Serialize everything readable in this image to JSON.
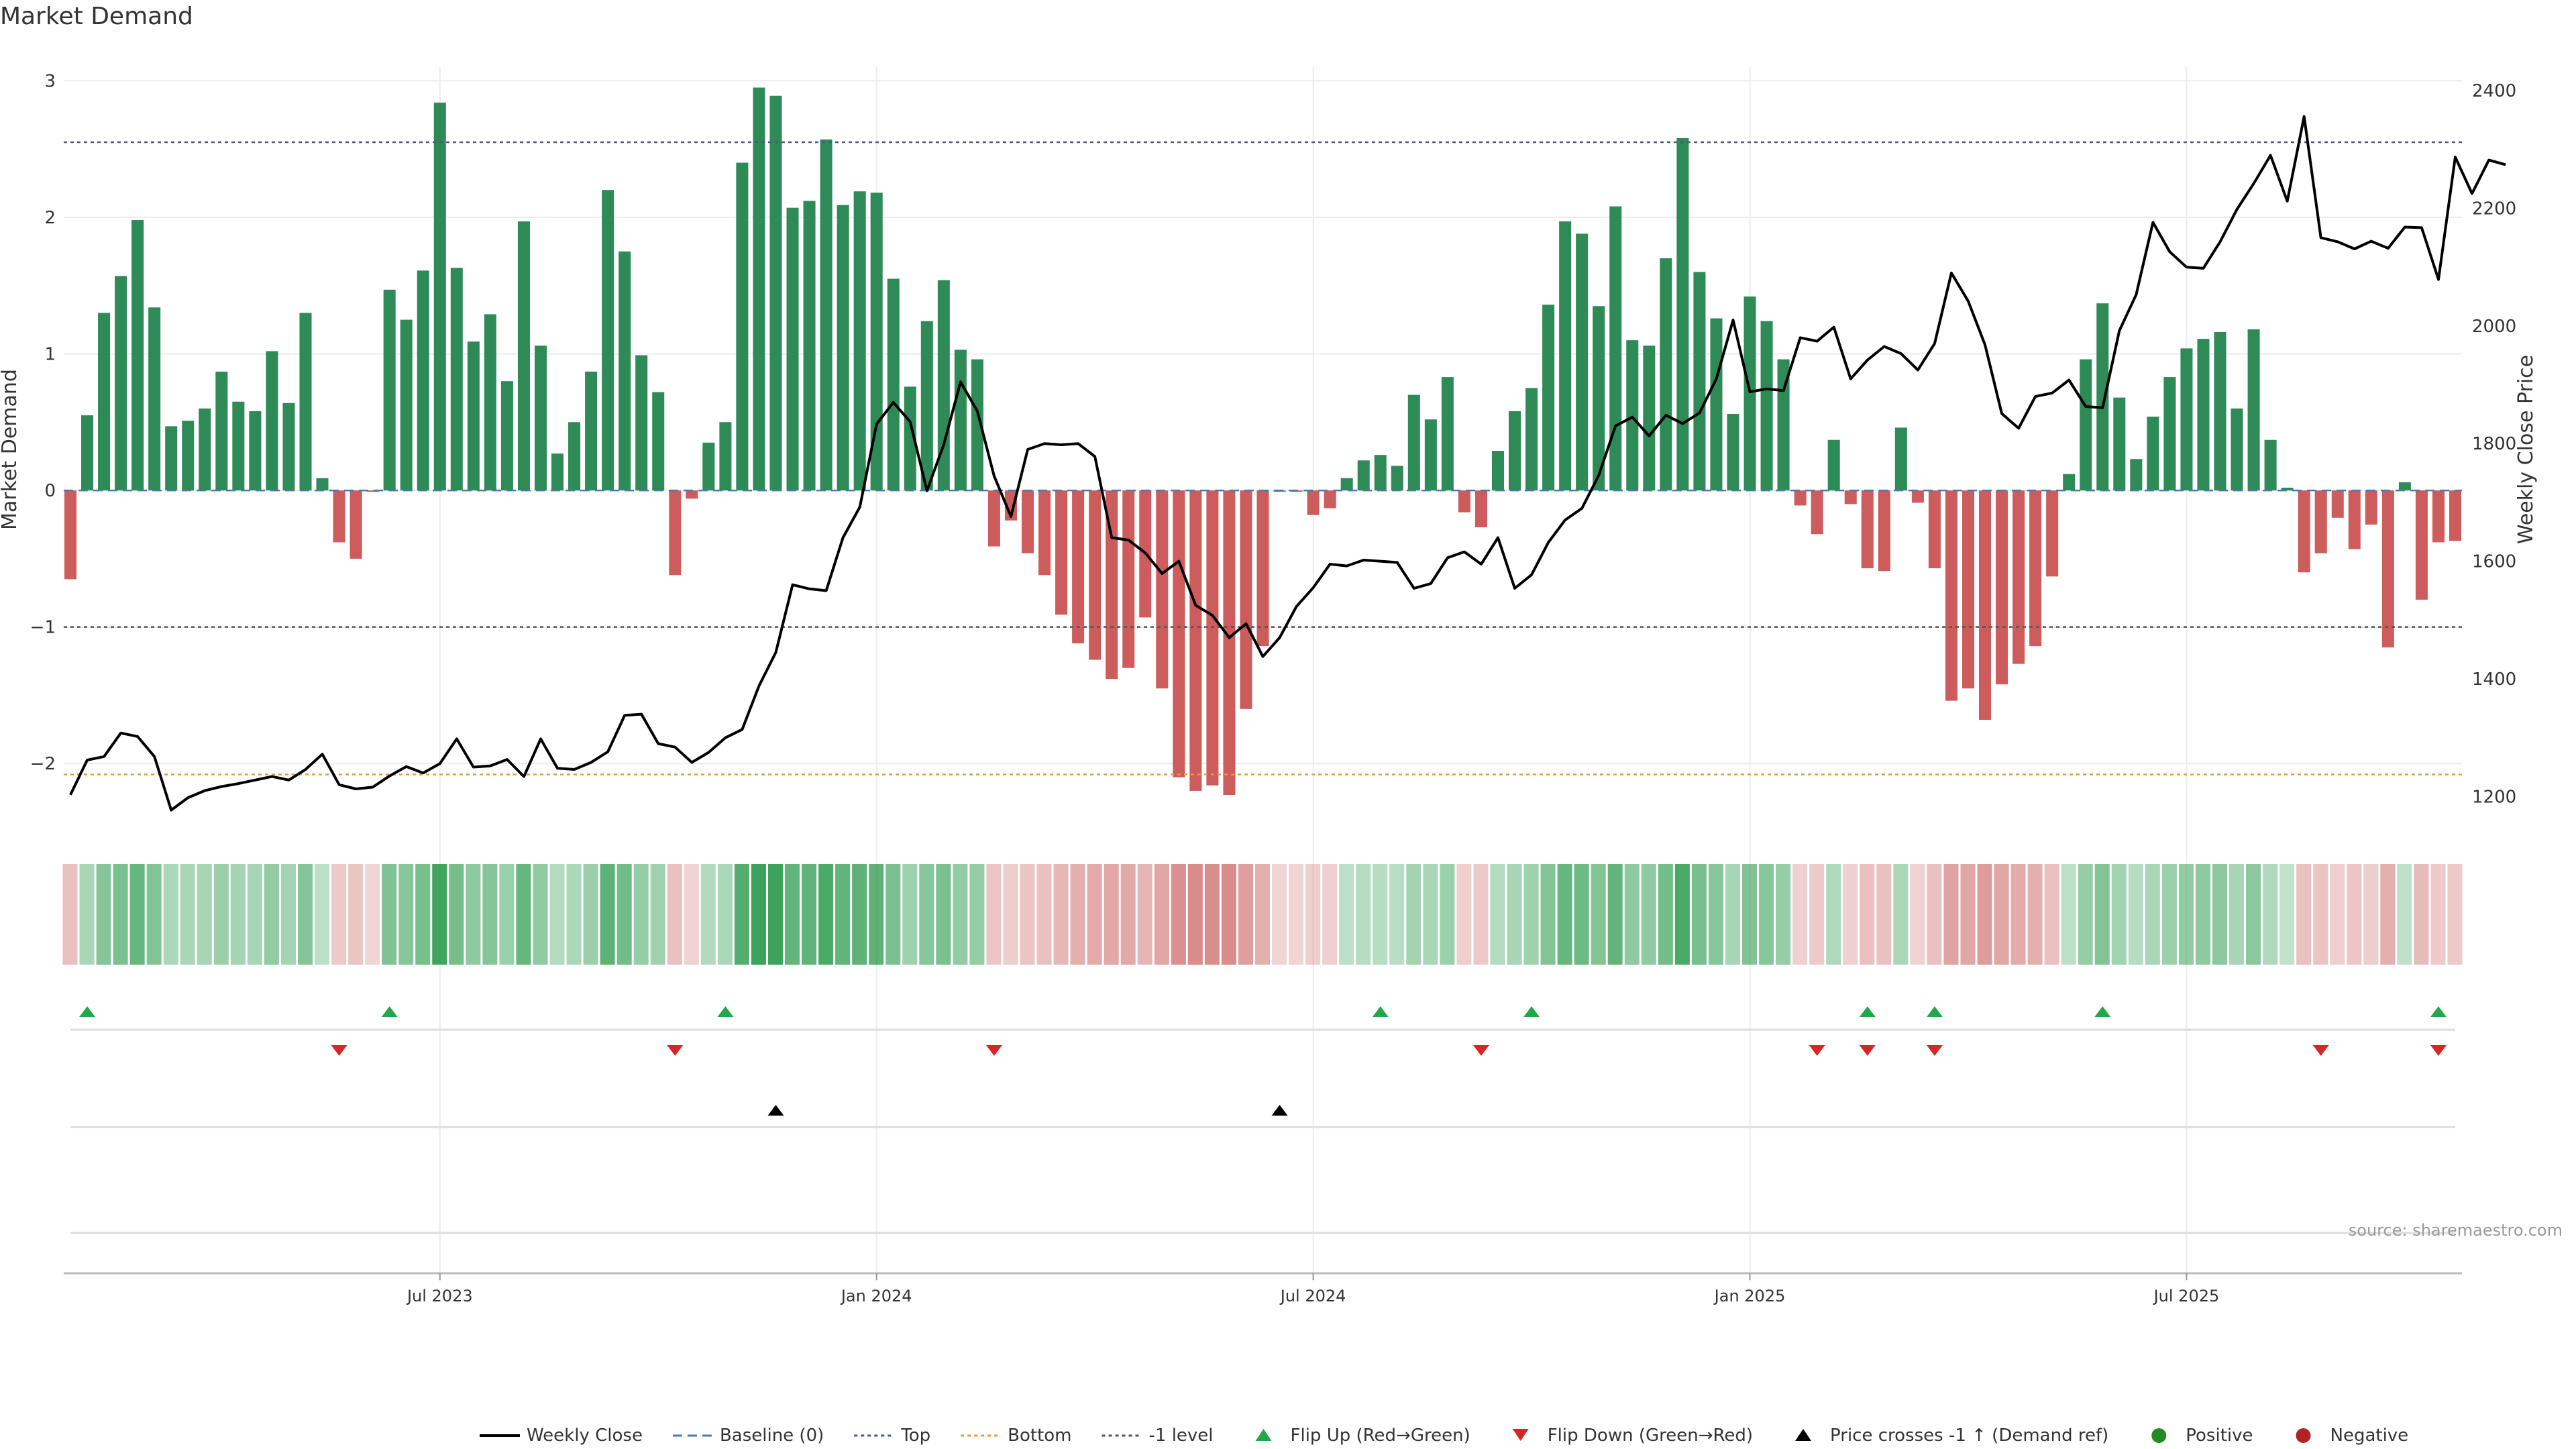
{
  "title": "Market Demand",
  "source": "source: sharemaestro.com",
  "y_left_label": "Market Demand",
  "y_right_label": "Weekly Close Price",
  "colors": {
    "positive": "#2e8b57",
    "negative": "#cd5c5c",
    "price_line": "#000000",
    "top_line": "#4a5a7a",
    "bottom_line": "#e69b3a",
    "baseline": "#4a78b0",
    "flip_up": "#22a84a",
    "flip_down": "#d62728",
    "cross": "#000000"
  },
  "legend": [
    {
      "label": "Weekly Close",
      "kind": "line",
      "color": "#000000"
    },
    {
      "label": "Baseline (0)",
      "kind": "dash",
      "color": "#4a78b0"
    },
    {
      "label": "Top",
      "kind": "dot",
      "color": "#4a5a7a"
    },
    {
      "label": "Bottom",
      "kind": "dot",
      "color": "#e69b3a"
    },
    {
      "label": "-1 level",
      "kind": "dot",
      "color": "#555555"
    },
    {
      "label": "Flip Up (Red→Green)",
      "kind": "tri-up",
      "color": "#22a84a"
    },
    {
      "label": "Flip Down (Green→Red)",
      "kind": "tri-down",
      "color": "#d62728"
    },
    {
      "label": "Price crosses -1 ↑ (Demand ref)",
      "kind": "tri-up",
      "color": "#000000"
    },
    {
      "label": "Positive",
      "kind": "circle",
      "color": "#228b22"
    },
    {
      "label": "Negative",
      "kind": "circle",
      "color": "#b22222"
    }
  ],
  "chart_data": {
    "type": "bar",
    "x_ticks": [
      "Jul 2023",
      "Jan 2024",
      "Jul 2024",
      "Jan 2025",
      "Jul 2025"
    ],
    "x_tick_index": [
      22,
      48,
      74,
      100,
      126
    ],
    "y_left_ticks": [
      3,
      2,
      1,
      0,
      -1,
      -2
    ],
    "y_left_range": [
      -2.5,
      3.1
    ],
    "y_right_ticks": [
      2400,
      2200,
      2000,
      1800,
      1600,
      1400,
      1200
    ],
    "y_right_range": [
      1140,
      2440
    ],
    "top_level": 2.55,
    "bottom_level": -2.08,
    "minus1_level": -1,
    "demand": [
      -0.65,
      0.55,
      1.3,
      1.57,
      1.98,
      1.34,
      0.47,
      0.51,
      0.6,
      0.87,
      0.65,
      0.58,
      1.02,
      0.64,
      1.3,
      0.09,
      -0.38,
      -0.5,
      -0.01,
      1.47,
      1.25,
      1.61,
      2.84,
      1.63,
      1.09,
      1.29,
      0.8,
      1.97,
      1.06,
      0.27,
      0.5,
      0.87,
      2.2,
      1.75,
      0.99,
      0.72,
      -0.62,
      -0.06,
      0.35,
      0.5,
      2.4,
      2.95,
      2.89,
      2.07,
      2.12,
      2.57,
      2.09,
      2.19,
      2.18,
      1.55,
      0.76,
      1.24,
      1.54,
      1.03,
      0.96,
      -0.41,
      -0.22,
      -0.46,
      -0.62,
      -0.91,
      -1.12,
      -1.24,
      -1.38,
      -1.3,
      -0.93,
      -1.45,
      -2.1,
      -2.2,
      -2.16,
      -2.23,
      -1.6,
      -1.14,
      -0.01,
      -0.01,
      -0.18,
      -0.13,
      0.09,
      0.22,
      0.26,
      0.18,
      0.7,
      0.52,
      0.83,
      -0.16,
      -0.27,
      0.29,
      0.58,
      0.75,
      1.36,
      1.97,
      1.88,
      1.35,
      2.08,
      1.1,
      1.06,
      1.7,
      2.58,
      1.6,
      1.26,
      0.56,
      1.42,
      1.24,
      0.96,
      -0.11,
      -0.32,
      0.37,
      -0.1,
      -0.57,
      -0.59,
      0.46,
      -0.09,
      -0.57,
      -1.54,
      -1.45,
      -1.68,
      -1.42,
      -1.27,
      -1.14,
      -0.63,
      0.12,
      0.96,
      1.37,
      0.68,
      0.23,
      0.54,
      0.83,
      1.04,
      1.11,
      1.16,
      0.6,
      1.18,
      0.37,
      0.02,
      -0.6,
      -0.46,
      -0.2,
      -0.43,
      -0.25,
      -1.15,
      0.06,
      -0.8,
      -0.38,
      -0.37
    ],
    "price": [
      1203,
      1262,
      1268,
      1308,
      1302,
      1268,
      1177,
      1198,
      1210,
      1217,
      1222,
      1228,
      1234,
      1228,
      1246,
      1272,
      1220,
      1213,
      1216,
      1235,
      1251,
      1240,
      1256,
      1298,
      1250,
      1252,
      1263,
      1234,
      1298,
      1248,
      1246,
      1258,
      1276,
      1338,
      1340,
      1290,
      1284,
      1258,
      1275,
      1300,
      1314,
      1388,
      1445,
      1560,
      1553,
      1550,
      1640,
      1692,
      1833,
      1870,
      1837,
      1720,
      1798,
      1905,
      1855,
      1745,
      1676,
      1790,
      1800,
      1798,
      1800,
      1778,
      1640,
      1636,
      1614,
      1579,
      1600,
      1525,
      1508,
      1470,
      1494,
      1438,
      1470,
      1523,
      1555,
      1595,
      1592,
      1602,
      1600,
      1598,
      1554,
      1562,
      1606,
      1616,
      1595,
      1640,
      1554,
      1577,
      1632,
      1670,
      1690,
      1746,
      1830,
      1845,
      1813,
      1848,
      1834,
      1852,
      1910,
      2010,
      1888,
      1893,
      1890,
      1980,
      1974,
      1998,
      1910,
      1942,
      1965,
      1953,
      1925,
      1970,
      2090,
      2042,
      1968,
      1851,
      1826,
      1880,
      1886,
      1908,
      1863,
      1861,
      1992,
      2053,
      2176,
      2126,
      2100,
      2098,
      2143,
      2198,
      2242,
      2290,
      2212,
      2356,
      2150,
      2143,
      2131,
      2144,
      2132,
      2168,
      2167,
      2079,
      2287,
      2225,
      2282,
      2274
    ],
    "flip_up_index": [
      1,
      19,
      39,
      78,
      87,
      107,
      111,
      121,
      141
    ],
    "flip_down_index": [
      16,
      36,
      55,
      84,
      104,
      107,
      111,
      134,
      141
    ],
    "cross_index": [
      42,
      72
    ]
  }
}
